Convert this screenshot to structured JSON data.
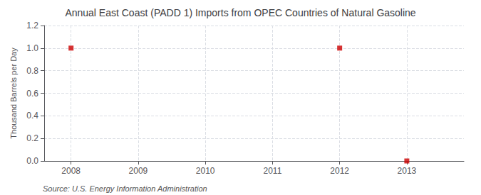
{
  "chart_data": {
    "type": "scatter",
    "title": "Annual East Coast (PADD 1) Imports from OPEC Countries of Natural Gasoline",
    "ylabel": "Thousand Barrels per Day",
    "annotations": [
      "Source: U.S. Energy Information Administration"
    ],
    "x": [
      2008,
      2012,
      2013
    ],
    "values": [
      1.0,
      1.0,
      0.0
    ],
    "color": "#cc0000",
    "marker": "square",
    "xlim": [
      2007.6,
      2013.85
    ],
    "xticks": [
      2008,
      2009,
      2010,
      2011,
      2012,
      2013
    ],
    "ylim": [
      0.0,
      1.2
    ],
    "yticks": [
      {
        "value": 0.0,
        "label": "0.0"
      },
      0.2,
      0.4,
      0.6,
      0.8,
      {
        "value": 1.0,
        "label": "1.0"
      },
      1.2
    ],
    "grid": true
  }
}
